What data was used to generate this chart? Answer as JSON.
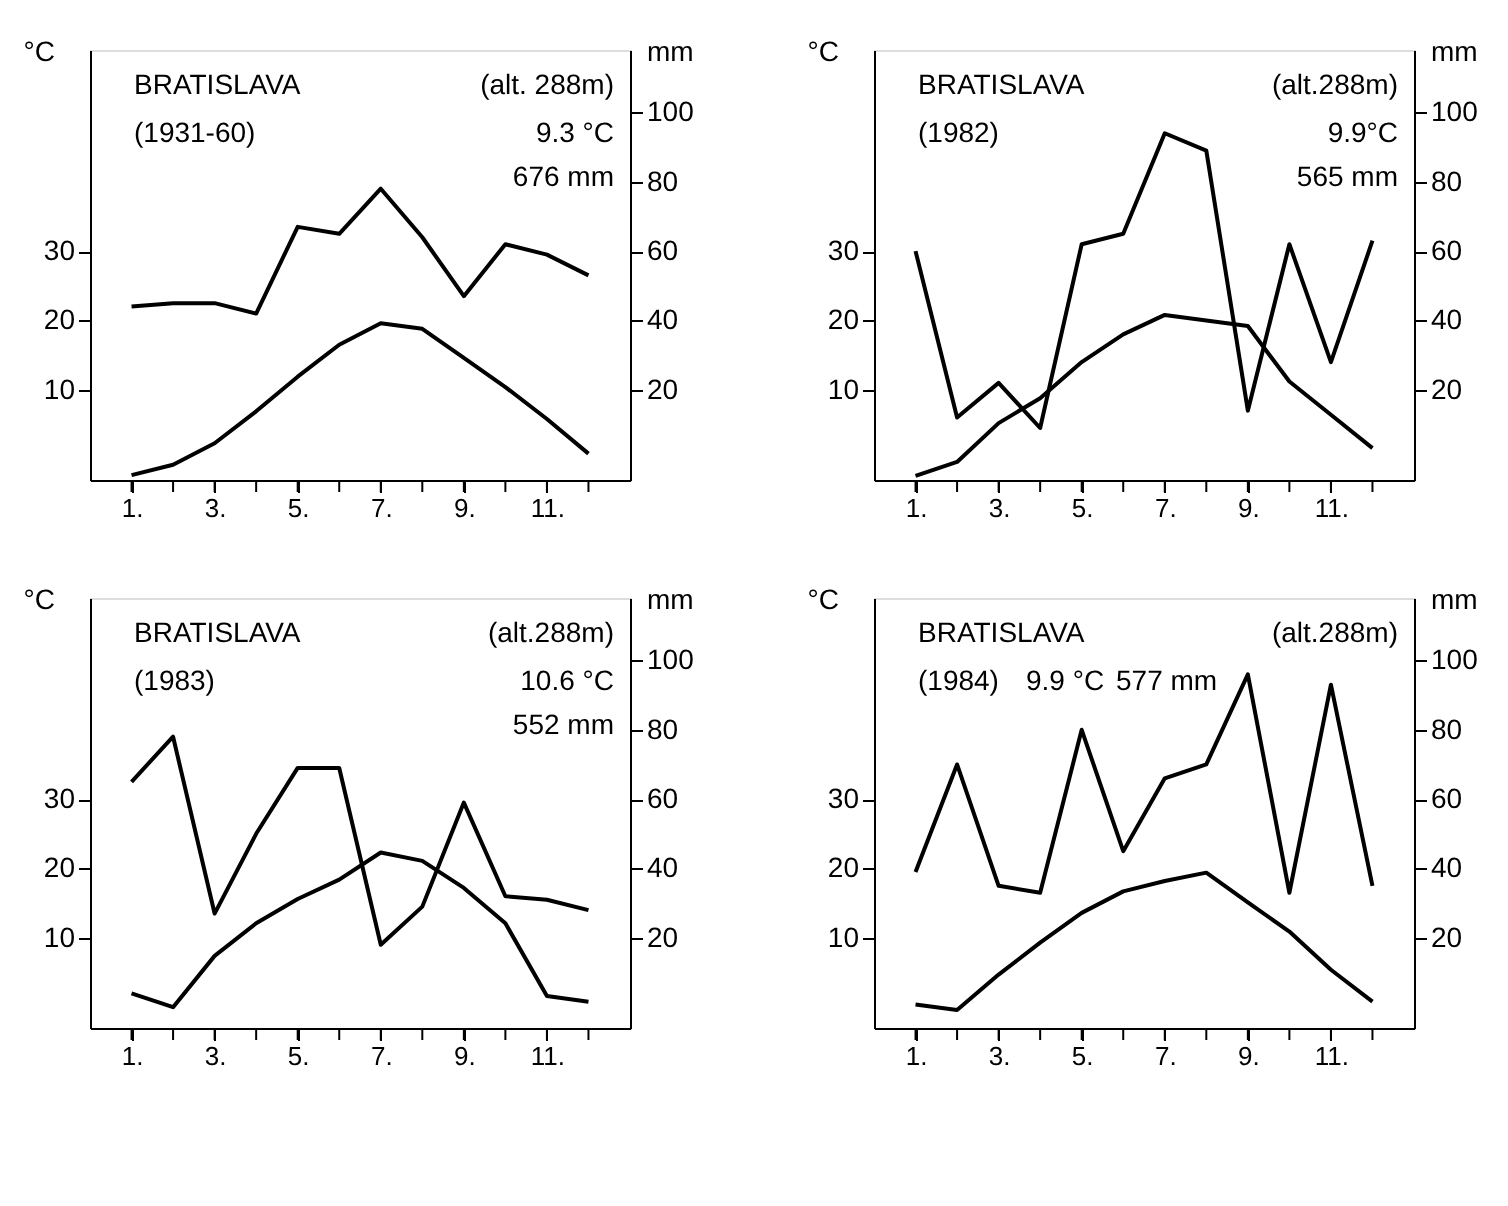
{
  "chart_data": [
    {
      "type": "line",
      "title": "BRATISLAVA",
      "subtitle": "(1931-60)",
      "annotations": [
        "(alt. 288m)",
        "9.3 °C",
        "676 mm"
      ],
      "ylabel": "°C",
      "y2label": "mm",
      "x": [
        1,
        2,
        3,
        4,
        5,
        6,
        7,
        8,
        9,
        10,
        11,
        12
      ],
      "series": [
        {
          "color": "#000000",
          "values": [
            -2.3,
            -0.8,
            2.3,
            6.9,
            11.9,
            16.5,
            19.6,
            18.8,
            14.6,
            10.4,
            5.8,
            0.8
          ]
        },
        {
          "color": "#000000",
          "axis": "y2",
          "values": [
            44,
            45,
            45,
            42,
            67,
            65,
            78,
            64,
            47,
            62,
            59,
            53
          ]
        }
      ],
      "xlim": [
        0,
        13
      ],
      "xticks": [
        {
          "value": 1,
          "label": "1."
        },
        {
          "value": 2,
          "label": null
        },
        {
          "value": 3,
          "label": "3."
        },
        {
          "value": 4,
          "label": null
        },
        {
          "value": 5,
          "label": "5."
        },
        {
          "value": 6,
          "label": null
        },
        {
          "value": 7,
          "label": "7."
        },
        {
          "value": 8,
          "label": null
        },
        {
          "value": 9,
          "label": "9."
        },
        {
          "value": 10,
          "label": null
        },
        {
          "value": 11,
          "label": "11."
        },
        {
          "value": 12,
          "label": null
        }
      ],
      "ylim": [
        -3,
        59
      ],
      "yticks": [
        10,
        20,
        30
      ],
      "y2lim": [
        -6,
        118
      ],
      "y2ticks": [
        20,
        40,
        60,
        80,
        100
      ],
      "grid": false,
      "marker": "none",
      "line_style": "solid"
    },
    {
      "type": "line",
      "title": "BRATISLAVA",
      "subtitle": "(1982)",
      "annotations": [
        "(alt.288m)",
        "9.9°C",
        "565 mm"
      ],
      "ylabel": "°C",
      "y2label": "mm",
      "x": [
        1,
        2,
        3,
        4,
        5,
        6,
        7,
        8,
        9,
        10,
        11,
        12
      ],
      "series": [
        {
          "color": "#000000",
          "values": [
            -2.4,
            -0.4,
            5.2,
            8.8,
            14,
            18,
            20.8,
            20,
            19.2,
            11.2,
            6.4,
            1.6
          ]
        },
        {
          "color": "#000000",
          "axis": "y2",
          "values": [
            60,
            12,
            22,
            9,
            62,
            65,
            94,
            89,
            14,
            62,
            28,
            63
          ]
        }
      ],
      "xlim": [
        0,
        13
      ],
      "xticks": [
        {
          "value": 1,
          "label": "1."
        },
        {
          "value": 2,
          "label": null
        },
        {
          "value": 3,
          "label": "3."
        },
        {
          "value": 4,
          "label": null
        },
        {
          "value": 5,
          "label": "5."
        },
        {
          "value": 6,
          "label": null
        },
        {
          "value": 7,
          "label": "7."
        },
        {
          "value": 8,
          "label": null
        },
        {
          "value": 9,
          "label": "9."
        },
        {
          "value": 10,
          "label": null
        },
        {
          "value": 11,
          "label": "11."
        },
        {
          "value": 12,
          "label": null
        }
      ],
      "ylim": [
        -3,
        59
      ],
      "yticks": [
        10,
        20,
        30
      ],
      "y2lim": [
        -6,
        118
      ],
      "y2ticks": [
        20,
        40,
        60,
        80,
        100
      ],
      "grid": false,
      "marker": "none",
      "line_style": "solid"
    },
    {
      "type": "line",
      "title": "BRATISLAVA",
      "subtitle": "(1983)",
      "annotations": [
        "(alt.288m)",
        "10.6 °C",
        "552 mm"
      ],
      "ylabel": "°C",
      "y2label": "mm",
      "x": [
        1,
        2,
        3,
        4,
        5,
        6,
        7,
        8,
        9,
        10,
        11,
        12
      ],
      "series": [
        {
          "color": "#000000",
          "values": [
            2.0,
            0,
            7.4,
            12.1,
            15.6,
            18.4,
            22.3,
            21.1,
            17.2,
            12.1,
            1.6,
            0.8
          ]
        },
        {
          "color": "#000000",
          "axis": "y2",
          "values": [
            65,
            78,
            27,
            50,
            69,
            69,
            18,
            29,
            59,
            32,
            31,
            28
          ]
        }
      ],
      "xlim": [
        0,
        13
      ],
      "xticks": [
        {
          "value": 1,
          "label": "1."
        },
        {
          "value": 2,
          "label": null
        },
        {
          "value": 3,
          "label": "3."
        },
        {
          "value": 4,
          "label": null
        },
        {
          "value": 5,
          "label": "5."
        },
        {
          "value": 6,
          "label": null
        },
        {
          "value": 7,
          "label": "7."
        },
        {
          "value": 8,
          "label": null
        },
        {
          "value": 9,
          "label": "9."
        },
        {
          "value": 10,
          "label": null
        },
        {
          "value": 11,
          "label": "11."
        },
        {
          "value": 12,
          "label": null
        }
      ],
      "ylim": [
        -3,
        59
      ],
      "yticks": [
        10,
        20,
        30
      ],
      "y2lim": [
        -6,
        118
      ],
      "y2ticks": [
        20,
        40,
        60,
        80,
        100
      ],
      "grid": false,
      "marker": "none",
      "line_style": "solid"
    },
    {
      "type": "line",
      "title": "BRATISLAVA",
      "subtitle": "(1984)",
      "annotations": [
        "(alt.288m)",
        "9.9 °C",
        "577 mm"
      ],
      "ylabel": "°C",
      "y2label": "mm",
      "x": [
        1,
        2,
        3,
        4,
        5,
        6,
        7,
        8,
        9,
        10,
        11,
        12
      ],
      "series": [
        {
          "color": "#000000",
          "values": [
            0.4,
            -0.4,
            4.7,
            9.3,
            13.6,
            16.7,
            18.2,
            19.4,
            15.1,
            10.9,
            5.4,
            0.8
          ]
        },
        {
          "color": "#000000",
          "axis": "y2",
          "values": [
            39,
            70,
            35,
            33,
            80,
            45,
            66,
            70,
            96,
            33,
            93,
            35
          ]
        }
      ],
      "xlim": [
        0,
        13
      ],
      "xticks": [
        {
          "value": 1,
          "label": "1."
        },
        {
          "value": 2,
          "label": null
        },
        {
          "value": 3,
          "label": "3."
        },
        {
          "value": 4,
          "label": null
        },
        {
          "value": 5,
          "label": "5."
        },
        {
          "value": 6,
          "label": null
        },
        {
          "value": 7,
          "label": "7."
        },
        {
          "value": 8,
          "label": null
        },
        {
          "value": 9,
          "label": "9."
        },
        {
          "value": 10,
          "label": null
        },
        {
          "value": 11,
          "label": "11."
        },
        {
          "value": 12,
          "label": null
        }
      ],
      "ylim": [
        -3,
        59
      ],
      "yticks": [
        10,
        20,
        30
      ],
      "y2lim": [
        -6,
        118
      ],
      "y2ticks": [
        20,
        40,
        60,
        80,
        100
      ],
      "grid": false,
      "marker": "none",
      "line_style": "solid"
    }
  ]
}
